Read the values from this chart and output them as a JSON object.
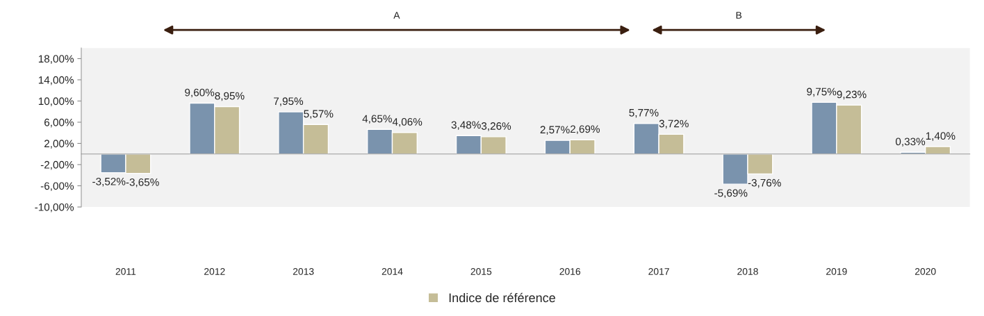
{
  "chart_data": {
    "type": "bar",
    "categories": [
      "2011",
      "2012",
      "2013",
      "2014",
      "2015",
      "2016",
      "2017",
      "2018",
      "2019",
      "2020"
    ],
    "series": [
      {
        "color": "#7a93ad",
        "values": [
          -3.52,
          9.6,
          7.95,
          4.65,
          3.48,
          2.57,
          5.77,
          -5.69,
          9.75,
          0.33
        ],
        "value_labels": [
          "-3,52%",
          "9,60%",
          "7,95%",
          "4,65%",
          "3,48%",
          "2,57%",
          "5,77%",
          "-5,69%",
          "9,75%",
          "0,33%"
        ]
      },
      {
        "name": "Indice de référence",
        "color": "#c5bd97",
        "values": [
          -3.65,
          8.95,
          5.57,
          4.06,
          3.26,
          2.69,
          3.72,
          -3.76,
          9.23,
          1.4
        ],
        "value_labels": [
          "-3,65%",
          "8,95%",
          "5,57%",
          "4,06%",
          "3,26%",
          "2,69%",
          "3,72%",
          "-3,76%",
          "9,23%",
          "1,40%"
        ]
      }
    ],
    "ylim": [
      -10,
      20
    ],
    "yticks": [
      {
        "value": -10,
        "label": "-10,00%"
      },
      {
        "value": -6,
        "label": "-6,00%"
      },
      {
        "value": -2,
        "label": "-2,00%"
      },
      {
        "value": 2,
        "label": "2,00%"
      },
      {
        "value": 6,
        "label": "6,00%"
      },
      {
        "value": 10,
        "label": "10,00%"
      },
      {
        "value": 14,
        "label": "14,00%"
      },
      {
        "value": 18,
        "label": "18,00%"
      }
    ],
    "annotations": [
      "A",
      "B"
    ],
    "grid": false,
    "legend": "bottom"
  }
}
